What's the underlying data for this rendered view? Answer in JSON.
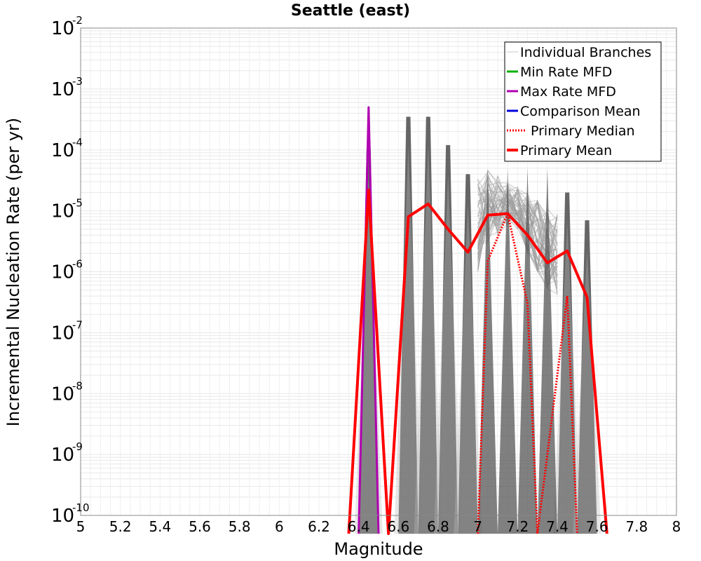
{
  "chart_data": {
    "type": "line",
    "title": "Seattle (east)",
    "xlabel": "Magnitude",
    "ylabel": "Incremental Nucleation Rate (per yr)",
    "xlim": [
      5,
      8
    ],
    "ylim": [
      1e-10,
      0.01
    ],
    "yscale": "log",
    "grid": true,
    "legend_position": "top-right",
    "x_ticks": [
      "5",
      "5.2",
      "5.4",
      "5.6",
      "5.8",
      "6",
      "6.2",
      "6.4",
      "6.6",
      "6.8",
      "7",
      "7.2",
      "7.4",
      "7.6",
      "7.8",
      "8"
    ],
    "y_ticks": [
      {
        "base": "10",
        "exp": "-10",
        "value": 1e-10
      },
      {
        "base": "10",
        "exp": "-9",
        "value": 1e-09
      },
      {
        "base": "10",
        "exp": "-8",
        "value": 1e-08
      },
      {
        "base": "10",
        "exp": "-7",
        "value": 1e-07
      },
      {
        "base": "10",
        "exp": "-6",
        "value": 1e-06
      },
      {
        "base": "10",
        "exp": "-5",
        "value": 1e-05
      },
      {
        "base": "10",
        "exp": "-4",
        "value": 0.0001
      },
      {
        "base": "10",
        "exp": "-3",
        "value": 0.001
      },
      {
        "base": "10",
        "exp": "-2",
        "value": 0.01
      }
    ],
    "legend": [
      {
        "name": "Individual Branches",
        "color": "#c8c8c8",
        "style": "solid-thin"
      },
      {
        "name": "Min Rate MFD",
        "color": "#00b000",
        "style": "solid"
      },
      {
        "name": "Max Rate MFD",
        "color": "#b000b0",
        "style": "solid"
      },
      {
        "name": "Comparison Mean",
        "color": "#0000dd",
        "style": "solid"
      },
      {
        "name": "Primary Median",
        "color": "#ff0000",
        "style": "dotted"
      },
      {
        "name": "Primary Mean",
        "color": "#ff0000",
        "style": "solid-thick"
      }
    ],
    "series": [
      {
        "name": "Primary Mean",
        "color": "#ff0000",
        "x": [
          6.35,
          6.45,
          6.55,
          6.65,
          6.75,
          6.85,
          6.95,
          7.05,
          7.15,
          7.25,
          7.35,
          7.45,
          7.55,
          7.65
        ],
        "y": [
          1e-12,
          2.2e-05,
          1e-12,
          8e-06,
          1.3e-05,
          5e-06,
          2.1e-06,
          8.5e-06,
          9e-06,
          4e-06,
          1.4e-06,
          2.2e-06,
          3.8e-07,
          1e-12
        ]
      },
      {
        "name": "Primary Median",
        "color": "#ff0000",
        "x": [
          7.0,
          7.05,
          7.15,
          7.25,
          7.3,
          7.45,
          7.5
        ],
        "y": [
          1e-12,
          1.5e-06,
          9e-06,
          3e-07,
          1e-12,
          4e-07,
          1e-12
        ]
      },
      {
        "name": "Max Rate MFD",
        "color": "#b000b0",
        "x": [
          6.4,
          6.45,
          6.5
        ],
        "y": [
          1e-12,
          0.0005,
          1e-12
        ]
      }
    ],
    "branch_bands": [
      {
        "x": 6.45,
        "y_max": 0.0001,
        "color": "#555555"
      },
      {
        "x": 6.65,
        "y_max": 0.00035,
        "color": "#555555"
      },
      {
        "x": 6.75,
        "y_max": 0.00035,
        "color": "#555555"
      },
      {
        "x": 6.85,
        "y_max": 0.00012,
        "color": "#555555"
      },
      {
        "x": 6.95,
        "y_max": 4e-05,
        "color": "#555555"
      },
      {
        "x": 7.45,
        "y_max": 2e-05,
        "color": "#555555"
      },
      {
        "x": 7.55,
        "y_max": 7e-06,
        "color": "#555555"
      }
    ],
    "branch_envelope": {
      "x": [
        7.0,
        7.05,
        7.1,
        7.15,
        7.2,
        7.25,
        7.3,
        7.35,
        7.4
      ],
      "y_high": [
        4e-05,
        5e-05,
        4e-05,
        3e-05,
        2.5e-05,
        2e-05,
        1.5e-05,
        1.2e-05,
        1e-05
      ],
      "y_low": [
        1e-06,
        3e-06,
        4e-06,
        6e-06,
        5e-06,
        2e-06,
        8e-07,
        5e-07,
        4e-07
      ],
      "color": "#999999"
    }
  }
}
